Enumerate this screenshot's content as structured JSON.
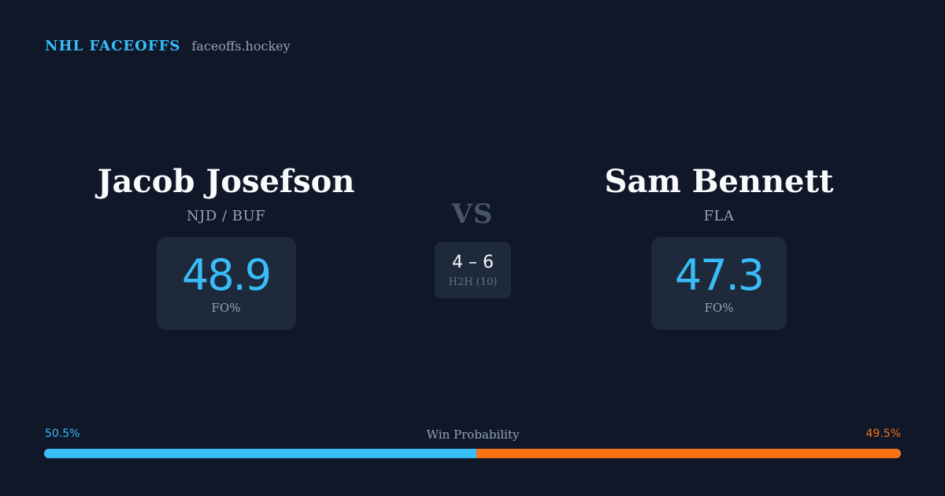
{
  "brand": {
    "name": "NHL FACEOFFS",
    "site": "faceoffs.hockey"
  },
  "player_left": {
    "name": "Jacob Josefson",
    "team": "NJD / BUF",
    "fo_pct": "48.9",
    "fo_label": "FO%"
  },
  "player_right": {
    "name": "Sam Bennett",
    "team": "FLA",
    "fo_pct": "47.3",
    "fo_label": "FO%"
  },
  "matchup": {
    "vs": "VS",
    "h2h_score": "4 – 6",
    "h2h_label": "H2H (10)"
  },
  "win_probability": {
    "title": "Win Probability",
    "left_label": "50.5%",
    "right_label": "49.5%",
    "left_fraction": 0.505,
    "right_fraction": 0.495,
    "left_color": "#38bdf8",
    "right_color": "#f97316"
  },
  "colors": {
    "background": "#0f1729",
    "card": "#1e293b",
    "accent": "#38bdf8",
    "secondary_accent": "#f97316",
    "muted_text": "#94a3b8"
  }
}
